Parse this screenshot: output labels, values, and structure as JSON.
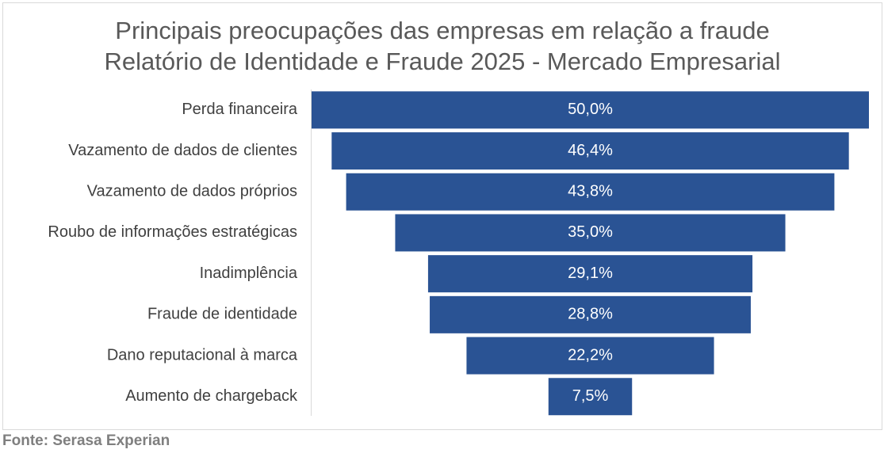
{
  "chart_data": {
    "type": "funnel",
    "title": "Principais preocupações das empresas em relação a fraude",
    "subtitle": "Relatório de Identidade e Fraude 2025 - Mercado Empresarial",
    "categories": [
      "Perda financeira",
      "Vazamento de dados de clientes",
      "Vazamento de dados próprios",
      "Roubo de informações estratégicas",
      "Inadimplência",
      "Fraude de identidade",
      "Dano reputacional à marca",
      "Aumento de chargeback"
    ],
    "values": [
      50.0,
      46.4,
      43.8,
      35.0,
      29.1,
      28.8,
      22.2,
      7.5
    ],
    "value_labels": [
      "50,0%",
      "46,4%",
      "43,8%",
      "35,0%",
      "29,1%",
      "28,8%",
      "22,2%",
      "7,5%"
    ],
    "color": "#2a5394",
    "source": "Fonte: Serasa Experian"
  }
}
